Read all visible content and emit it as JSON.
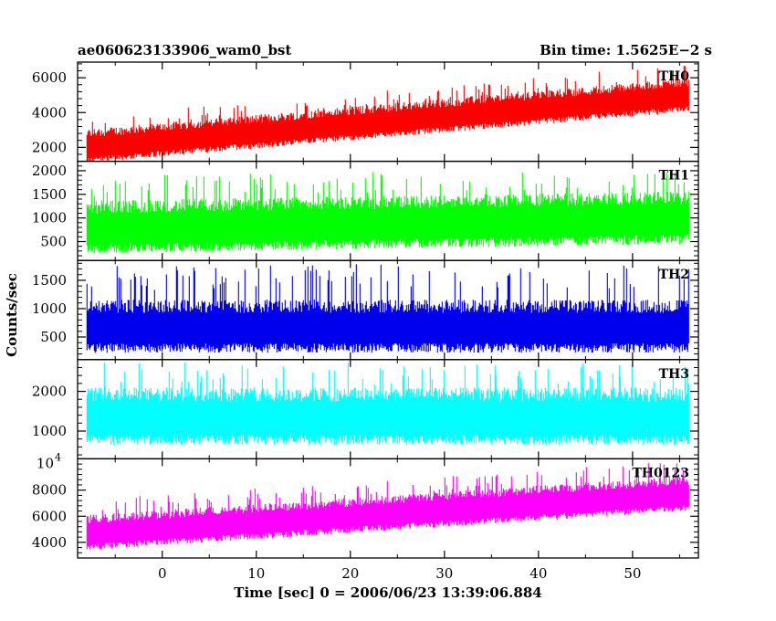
{
  "header": {
    "left_title": "ae060623133906_wam0_bst",
    "right_title": "Bin time: 1.5625E−2 s"
  },
  "axes": {
    "xlabel": "Time [sec] 0 = 2006/06/23 13:39:06.884",
    "ylabel": "Counts/sec"
  },
  "chart_data": {
    "type": "line",
    "xlim": [
      -9,
      57
    ],
    "x_range": [
      -8,
      56
    ],
    "xticks": [
      0,
      10,
      20,
      30,
      40,
      50
    ],
    "xtick_labels": [
      "0",
      "10",
      "20",
      "30",
      "40",
      "50"
    ],
    "grid": false,
    "panels": [
      {
        "name": "TH0",
        "color": "#ff0000",
        "ylim": [
          1200,
          6900
        ],
        "yticks": [
          2000,
          4000,
          6000
        ],
        "ytick_labels": [
          "2000",
          "4000",
          "6000"
        ],
        "mean_start": 1950,
        "mean_end": 4900,
        "band_low": 850,
        "band_high": 1100,
        "spike": 1900
      },
      {
        "name": "TH1",
        "color": "#00ff00",
        "ylim": [
          100,
          2200
        ],
        "yticks": [
          500,
          1000,
          1500,
          2000
        ],
        "ytick_labels": [
          "500",
          "1000",
          "1500",
          "2000"
        ],
        "mean_start": 750,
        "mean_end": 950,
        "band_low": 500,
        "band_high": 620,
        "spike": 1150
      },
      {
        "name": "TH2",
        "color": "#0000ee",
        "ylim": [
          100,
          1850
        ],
        "yticks": [
          500,
          1000,
          1500
        ],
        "ytick_labels": [
          "500",
          "1000",
          "1500"
        ],
        "mean_start": 640,
        "mean_end": 640,
        "band_low": 420,
        "band_high": 520,
        "spike": 1150
      },
      {
        "name": "TH3",
        "color": "#00ffff",
        "ylim": [
          300,
          2800
        ],
        "yticks": [
          1000,
          2000
        ],
        "ytick_labels": [
          "1000",
          "2000"
        ],
        "mean_start": 1300,
        "mean_end": 1300,
        "band_low": 650,
        "band_high": 800,
        "spike": 1450
      },
      {
        "name": "TH0123",
        "color": "#ff00ff",
        "ylim": [
          2800,
          10400
        ],
        "yticks": [
          4000,
          6000,
          8000
        ],
        "ytick_labels": [
          "4000",
          "6000",
          "8000"
        ],
        "top_label_base": "10",
        "top_label_exp": "4",
        "mean_start": 4600,
        "mean_end": 7600,
        "band_low": 1200,
        "band_high": 1500,
        "spike": 2700
      }
    ]
  }
}
